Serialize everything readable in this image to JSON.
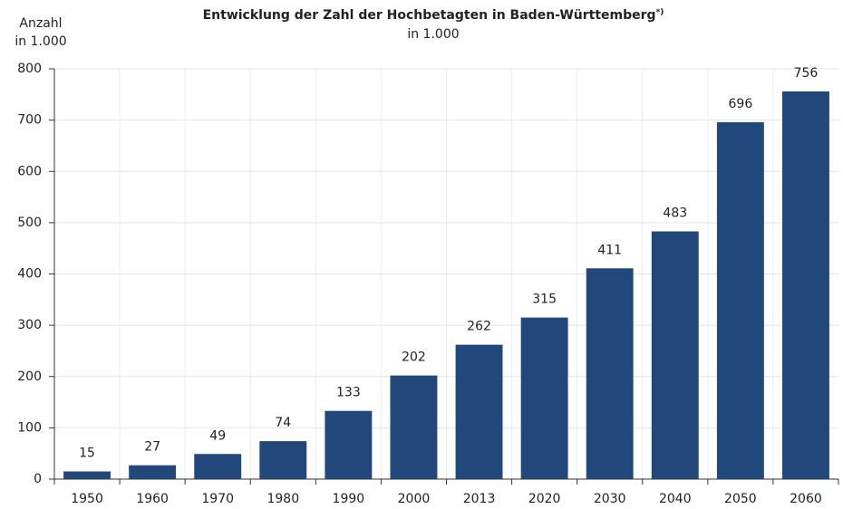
{
  "chart_data": {
    "type": "bar",
    "title": "Entwicklung der Zahl der Hochbetagten in Baden-Württemberg",
    "title_note": "*)",
    "subtitle": "in 1.000",
    "y_label": [
      "Anzahl",
      "in 1.000"
    ],
    "categories": [
      "1950",
      "1960",
      "1970",
      "1980",
      "1990",
      "2000",
      "2013",
      "2020",
      "2030",
      "2040",
      "2050",
      "2060"
    ],
    "values": [
      15,
      27,
      49,
      74,
      133,
      202,
      262,
      315,
      411,
      483,
      696,
      756
    ],
    "color": "#21477b",
    "ylim": [
      0,
      800
    ],
    "yticks": [
      0,
      100,
      200,
      300,
      400,
      500,
      600,
      700,
      800
    ],
    "grid": true
  }
}
